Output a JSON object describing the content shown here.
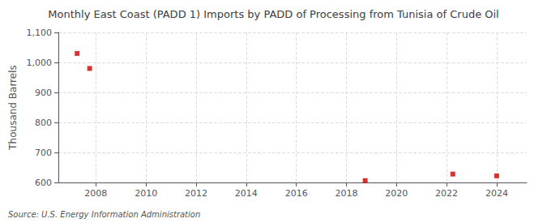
{
  "chart_data": {
    "type": "scatter",
    "title": "Monthly East Coast (PADD 1) Imports by PADD of Processing from Tunisia of Crude Oil",
    "ylabel": "Thousand Barrels",
    "annotations": [
      "Source: U.S. Energy Information Administration"
    ],
    "x": [
      2007.25,
      2007.75,
      2018.75,
      2022.25,
      2024.0
    ],
    "values": [
      1030,
      980,
      606,
      628,
      622
    ],
    "color": "#cc0000",
    "marker": "square",
    "xlim": [
      2006.5,
      2025.2
    ],
    "ylim": [
      600,
      1100
    ],
    "xticks": [
      2008,
      2010,
      2012,
      2014,
      2016,
      2018,
      2020,
      2022,
      2024
    ],
    "yticks": [
      600,
      700,
      800,
      900,
      {
        "value": 1000,
        "label": "1,000"
      },
      {
        "value": 1100,
        "label": "1,100"
      }
    ],
    "grid": true
  }
}
